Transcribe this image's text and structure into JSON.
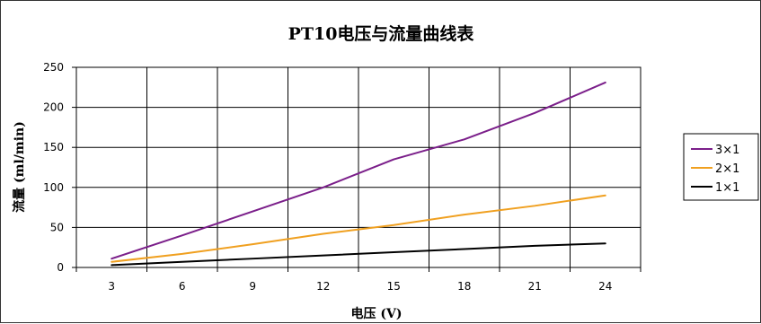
{
  "chart_data": {
    "type": "line",
    "title": "PT10电压与流量曲线表",
    "xlabel": "电压 (V)",
    "ylabel": "流量 (ml/min)",
    "x": [
      3,
      6,
      9,
      12,
      15,
      18,
      21,
      24
    ],
    "ylim": [
      0,
      250
    ],
    "yticks": [
      0,
      50,
      100,
      150,
      200,
      250
    ],
    "grid": true,
    "legend_position": "right",
    "series": [
      {
        "name": "3×1",
        "color": "#7b1f8a",
        "values": [
          11,
          40,
          70,
          100,
          135,
          160,
          193,
          231
        ]
      },
      {
        "name": "2×1",
        "color": "#f0a020",
        "values": [
          7,
          17,
          29,
          42,
          53,
          66,
          77,
          90
        ]
      },
      {
        "name": "1×1",
        "color": "#000000",
        "values": [
          3,
          7,
          11,
          15,
          19,
          23,
          27,
          30
        ]
      }
    ]
  }
}
